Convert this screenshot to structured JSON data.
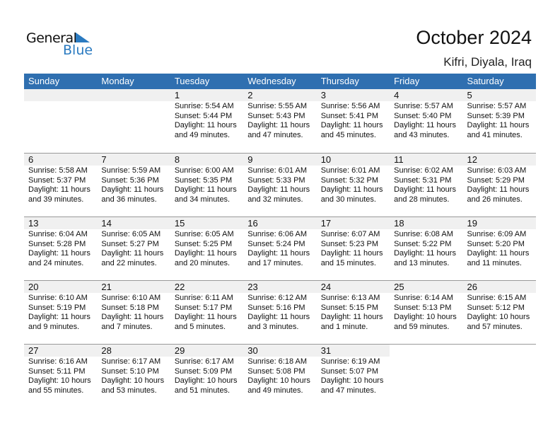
{
  "logo": {
    "text1": "General",
    "text2": "Blue"
  },
  "title": "October 2024",
  "location": "Kifri, Diyala, Iraq",
  "colors": {
    "header": "#2f6fb0",
    "brand_blue": "#2a7ac0",
    "date_band": "#f0f0f0"
  },
  "weekdays": [
    "Sunday",
    "Monday",
    "Tuesday",
    "Wednesday",
    "Thursday",
    "Friday",
    "Saturday"
  ],
  "first_weekday_index": 2,
  "days": [
    {
      "d": "1",
      "sunrise": "Sunrise: 5:54 AM",
      "sunset": "Sunset: 5:44 PM",
      "daylight": "Daylight: 11 hours",
      "minutes": "and 49 minutes."
    },
    {
      "d": "2",
      "sunrise": "Sunrise: 5:55 AM",
      "sunset": "Sunset: 5:43 PM",
      "daylight": "Daylight: 11 hours",
      "minutes": "and 47 minutes."
    },
    {
      "d": "3",
      "sunrise": "Sunrise: 5:56 AM",
      "sunset": "Sunset: 5:41 PM",
      "daylight": "Daylight: 11 hours",
      "minutes": "and 45 minutes."
    },
    {
      "d": "4",
      "sunrise": "Sunrise: 5:57 AM",
      "sunset": "Sunset: 5:40 PM",
      "daylight": "Daylight: 11 hours",
      "minutes": "and 43 minutes."
    },
    {
      "d": "5",
      "sunrise": "Sunrise: 5:57 AM",
      "sunset": "Sunset: 5:39 PM",
      "daylight": "Daylight: 11 hours",
      "minutes": "and 41 minutes."
    },
    {
      "d": "6",
      "sunrise": "Sunrise: 5:58 AM",
      "sunset": "Sunset: 5:37 PM",
      "daylight": "Daylight: 11 hours",
      "minutes": "and 39 minutes."
    },
    {
      "d": "7",
      "sunrise": "Sunrise: 5:59 AM",
      "sunset": "Sunset: 5:36 PM",
      "daylight": "Daylight: 11 hours",
      "minutes": "and 36 minutes."
    },
    {
      "d": "8",
      "sunrise": "Sunrise: 6:00 AM",
      "sunset": "Sunset: 5:35 PM",
      "daylight": "Daylight: 11 hours",
      "minutes": "and 34 minutes."
    },
    {
      "d": "9",
      "sunrise": "Sunrise: 6:01 AM",
      "sunset": "Sunset: 5:33 PM",
      "daylight": "Daylight: 11 hours",
      "minutes": "and 32 minutes."
    },
    {
      "d": "10",
      "sunrise": "Sunrise: 6:01 AM",
      "sunset": "Sunset: 5:32 PM",
      "daylight": "Daylight: 11 hours",
      "minutes": "and 30 minutes."
    },
    {
      "d": "11",
      "sunrise": "Sunrise: 6:02 AM",
      "sunset": "Sunset: 5:31 PM",
      "daylight": "Daylight: 11 hours",
      "minutes": "and 28 minutes."
    },
    {
      "d": "12",
      "sunrise": "Sunrise: 6:03 AM",
      "sunset": "Sunset: 5:29 PM",
      "daylight": "Daylight: 11 hours",
      "minutes": "and 26 minutes."
    },
    {
      "d": "13",
      "sunrise": "Sunrise: 6:04 AM",
      "sunset": "Sunset: 5:28 PM",
      "daylight": "Daylight: 11 hours",
      "minutes": "and 24 minutes."
    },
    {
      "d": "14",
      "sunrise": "Sunrise: 6:05 AM",
      "sunset": "Sunset: 5:27 PM",
      "daylight": "Daylight: 11 hours",
      "minutes": "and 22 minutes."
    },
    {
      "d": "15",
      "sunrise": "Sunrise: 6:05 AM",
      "sunset": "Sunset: 5:25 PM",
      "daylight": "Daylight: 11 hours",
      "minutes": "and 20 minutes."
    },
    {
      "d": "16",
      "sunrise": "Sunrise: 6:06 AM",
      "sunset": "Sunset: 5:24 PM",
      "daylight": "Daylight: 11 hours",
      "minutes": "and 17 minutes."
    },
    {
      "d": "17",
      "sunrise": "Sunrise: 6:07 AM",
      "sunset": "Sunset: 5:23 PM",
      "daylight": "Daylight: 11 hours",
      "minutes": "and 15 minutes."
    },
    {
      "d": "18",
      "sunrise": "Sunrise: 6:08 AM",
      "sunset": "Sunset: 5:22 PM",
      "daylight": "Daylight: 11 hours",
      "minutes": "and 13 minutes."
    },
    {
      "d": "19",
      "sunrise": "Sunrise: 6:09 AM",
      "sunset": "Sunset: 5:20 PM",
      "daylight": "Daylight: 11 hours",
      "minutes": "and 11 minutes."
    },
    {
      "d": "20",
      "sunrise": "Sunrise: 6:10 AM",
      "sunset": "Sunset: 5:19 PM",
      "daylight": "Daylight: 11 hours",
      "minutes": "and 9 minutes."
    },
    {
      "d": "21",
      "sunrise": "Sunrise: 6:10 AM",
      "sunset": "Sunset: 5:18 PM",
      "daylight": "Daylight: 11 hours",
      "minutes": "and 7 minutes."
    },
    {
      "d": "22",
      "sunrise": "Sunrise: 6:11 AM",
      "sunset": "Sunset: 5:17 PM",
      "daylight": "Daylight: 11 hours",
      "minutes": "and 5 minutes."
    },
    {
      "d": "23",
      "sunrise": "Sunrise: 6:12 AM",
      "sunset": "Sunset: 5:16 PM",
      "daylight": "Daylight: 11 hours",
      "minutes": "and 3 minutes."
    },
    {
      "d": "24",
      "sunrise": "Sunrise: 6:13 AM",
      "sunset": "Sunset: 5:15 PM",
      "daylight": "Daylight: 11 hours",
      "minutes": "and 1 minute."
    },
    {
      "d": "25",
      "sunrise": "Sunrise: 6:14 AM",
      "sunset": "Sunset: 5:13 PM",
      "daylight": "Daylight: 10 hours",
      "minutes": "and 59 minutes."
    },
    {
      "d": "26",
      "sunrise": "Sunrise: 6:15 AM",
      "sunset": "Sunset: 5:12 PM",
      "daylight": "Daylight: 10 hours",
      "minutes": "and 57 minutes."
    },
    {
      "d": "27",
      "sunrise": "Sunrise: 6:16 AM",
      "sunset": "Sunset: 5:11 PM",
      "daylight": "Daylight: 10 hours",
      "minutes": "and 55 minutes."
    },
    {
      "d": "28",
      "sunrise": "Sunrise: 6:17 AM",
      "sunset": "Sunset: 5:10 PM",
      "daylight": "Daylight: 10 hours",
      "minutes": "and 53 minutes."
    },
    {
      "d": "29",
      "sunrise": "Sunrise: 6:17 AM",
      "sunset": "Sunset: 5:09 PM",
      "daylight": "Daylight: 10 hours",
      "minutes": "and 51 minutes."
    },
    {
      "d": "30",
      "sunrise": "Sunrise: 6:18 AM",
      "sunset": "Sunset: 5:08 PM",
      "daylight": "Daylight: 10 hours",
      "minutes": "and 49 minutes."
    },
    {
      "d": "31",
      "sunrise": "Sunrise: 6:19 AM",
      "sunset": "Sunset: 5:07 PM",
      "daylight": "Daylight: 10 hours",
      "minutes": "and 47 minutes."
    }
  ]
}
